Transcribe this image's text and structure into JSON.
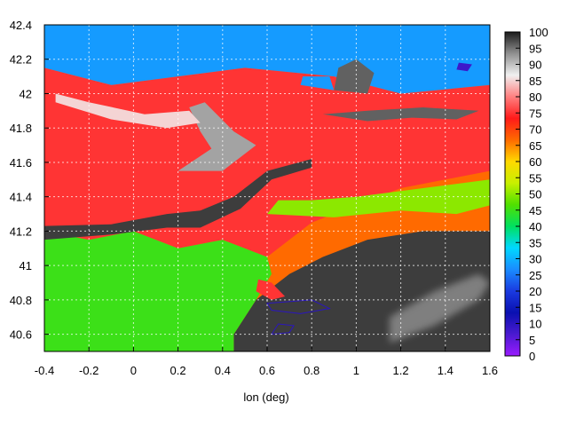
{
  "chart_data": {
    "type": "heatmap",
    "title": "",
    "xlabel": "lon (deg)",
    "ylabel": "",
    "xlim": [
      -0.4,
      1.6
    ],
    "ylim": [
      40.5,
      42.4
    ],
    "x_ticks": [
      "-0.4",
      "-0.2",
      "0",
      "0.2",
      "0.4",
      "0.6",
      "0.8",
      "1",
      "1.2",
      "1.4",
      "1.6"
    ],
    "y_ticks": [
      "40.6",
      "40.8",
      "41",
      "41.2",
      "41.4",
      "41.6",
      "41.8",
      "42",
      "42.2",
      "42.4"
    ],
    "colorbar": {
      "range": [
        0,
        100
      ],
      "ticks": [
        "0",
        "5",
        "10",
        "15",
        "20",
        "25",
        "30",
        "35",
        "40",
        "45",
        "50",
        "55",
        "60",
        "65",
        "70",
        "75",
        "80",
        "85",
        "90",
        "95",
        "100"
      ],
      "colors": [
        "#9a1bff",
        "#4a1ad0",
        "#0a10b0",
        "#1a3ae0",
        "#1a8cff",
        "#00d8ff",
        "#00e060",
        "#50e000",
        "#c8f000",
        "#ffd800",
        "#ff6a00",
        "#ff1a1a",
        "#ff8080",
        "#f0f0f0",
        "#909090",
        "#1a1a1a"
      ]
    },
    "grid": true,
    "regions": [
      {
        "cat": "ocean",
        "value": 98,
        "points": [
          [
            0.45,
            40.5
          ],
          [
            1.6,
            40.5
          ],
          [
            1.6,
            41.2
          ],
          [
            1.3,
            41.2
          ],
          [
            1.05,
            41.15
          ],
          [
            0.85,
            41.05
          ],
          [
            0.7,
            40.95
          ],
          [
            0.55,
            40.8
          ],
          [
            0.45,
            40.6
          ]
        ]
      },
      {
        "cat": "land_low",
        "value": 45,
        "points": [
          [
            -0.4,
            40.5
          ],
          [
            0.45,
            40.5
          ],
          [
            0.45,
            40.6
          ],
          [
            0.55,
            40.8
          ],
          [
            0.62,
            40.95
          ],
          [
            0.6,
            41.05
          ],
          [
            0.5,
            41.1
          ],
          [
            0.4,
            41.15
          ],
          [
            0.2,
            41.1
          ],
          [
            0,
            41.2
          ],
          [
            -0.2,
            41.15
          ],
          [
            -0.4,
            41.2
          ]
        ]
      },
      {
        "cat": "land_mid",
        "value": 75,
        "points": [
          [
            -0.4,
            41.2
          ],
          [
            -0.2,
            41.15
          ],
          [
            0,
            41.2
          ],
          [
            0.2,
            41.1
          ],
          [
            0.4,
            41.15
          ],
          [
            0.5,
            41.1
          ],
          [
            0.6,
            41.05
          ],
          [
            0.7,
            41.15
          ],
          [
            0.8,
            41.25
          ],
          [
            1.0,
            41.35
          ],
          [
            1.2,
            41.45
          ],
          [
            1.6,
            41.55
          ],
          [
            1.6,
            42.05
          ],
          [
            1.2,
            42.0
          ],
          [
            0.9,
            42.1
          ],
          [
            0.5,
            42.15
          ],
          [
            0.2,
            42.1
          ],
          [
            -0.1,
            42.05
          ],
          [
            -0.4,
            42.15
          ]
        ]
      },
      {
        "cat": "land_high",
        "value": 28,
        "points": [
          [
            -0.4,
            42.15
          ],
          [
            -0.1,
            42.05
          ],
          [
            0.2,
            42.1
          ],
          [
            0.5,
            42.15
          ],
          [
            0.9,
            42.1
          ],
          [
            1.2,
            42.0
          ],
          [
            1.6,
            42.05
          ],
          [
            1.6,
            42.4
          ],
          [
            -0.4,
            42.4
          ]
        ]
      },
      {
        "cat": "cloud_band",
        "value": 98,
        "points": [
          [
            -0.4,
            41.23
          ],
          [
            -0.1,
            41.24
          ],
          [
            0.15,
            41.3
          ],
          [
            0.3,
            41.32
          ],
          [
            0.45,
            41.4
          ],
          [
            0.6,
            41.55
          ],
          [
            0.8,
            41.62
          ],
          [
            0.8,
            41.57
          ],
          [
            0.62,
            41.5
          ],
          [
            0.48,
            41.33
          ],
          [
            0.3,
            41.22
          ],
          [
            0.15,
            41.22
          ],
          [
            -0.1,
            41.18
          ],
          [
            -0.4,
            41.15
          ]
        ]
      },
      {
        "cat": "cloud_band2",
        "value": 92,
        "points": [
          [
            0.2,
            41.55
          ],
          [
            0.35,
            41.68
          ],
          [
            0.3,
            41.78
          ],
          [
            0.25,
            41.92
          ],
          [
            0.32,
            41.95
          ],
          [
            0.45,
            41.78
          ],
          [
            0.55,
            41.7
          ],
          [
            0.4,
            41.55
          ]
        ]
      },
      {
        "cat": "light_band",
        "value": 85,
        "points": [
          [
            -0.35,
            41.95
          ],
          [
            -0.1,
            41.85
          ],
          [
            0.15,
            41.8
          ],
          [
            0.3,
            41.83
          ],
          [
            0.25,
            41.9
          ],
          [
            0.05,
            41.88
          ],
          [
            -0.2,
            41.95
          ],
          [
            -0.35,
            42.0
          ]
        ]
      },
      {
        "cat": "mid_band",
        "value": 50,
        "points": [
          [
            0.6,
            41.3
          ],
          [
            0.9,
            41.28
          ],
          [
            1.2,
            41.32
          ],
          [
            1.45,
            41.3
          ],
          [
            1.6,
            41.35
          ],
          [
            1.6,
            41.5
          ],
          [
            1.3,
            41.45
          ],
          [
            1.0,
            41.4
          ],
          [
            0.8,
            41.38
          ],
          [
            0.65,
            41.38
          ]
        ]
      },
      {
        "cat": "cloud_n",
        "value": 96,
        "points": [
          [
            0.85,
            41.88
          ],
          [
            1.05,
            41.84
          ],
          [
            1.25,
            41.86
          ],
          [
            1.45,
            41.85
          ],
          [
            1.55,
            41.9
          ],
          [
            1.3,
            41.92
          ],
          [
            1.05,
            41.9
          ]
        ]
      },
      {
        "cat": "cloud_n2",
        "value": 96,
        "points": [
          [
            0.9,
            42.02
          ],
          [
            1.05,
            42.0
          ],
          [
            1.08,
            42.12
          ],
          [
            1.0,
            42.2
          ],
          [
            0.92,
            42.15
          ]
        ]
      },
      {
        "cat": "land_blue",
        "value": 28,
        "points": [
          [
            0.75,
            42.05
          ],
          [
            0.9,
            42.02
          ],
          [
            0.88,
            42.1
          ],
          [
            0.76,
            42.1
          ]
        ]
      },
      {
        "cat": "land_mid_s",
        "value": 75,
        "points": [
          [
            0.55,
            40.85
          ],
          [
            0.62,
            40.8
          ],
          [
            0.68,
            40.82
          ],
          [
            0.62,
            40.9
          ],
          [
            0.56,
            40.92
          ]
        ]
      },
      {
        "cat": "purple_spot",
        "value": 8,
        "points": [
          [
            1.45,
            42.14
          ],
          [
            1.5,
            42.13
          ],
          [
            1.52,
            42.17
          ],
          [
            1.46,
            42.18
          ]
        ]
      },
      {
        "cat": "ocean_glint",
        "value": 90,
        "points": [
          [
            1.15,
            40.55
          ],
          [
            1.35,
            40.65
          ],
          [
            1.55,
            40.8
          ],
          [
            1.6,
            40.9
          ],
          [
            1.55,
            40.95
          ],
          [
            1.35,
            40.85
          ],
          [
            1.15,
            40.7
          ]
        ]
      },
      {
        "cat": "purple_outline",
        "value": 10,
        "points": [
          [
            0.6,
            40.78
          ],
          [
            0.8,
            40.8
          ],
          [
            0.88,
            40.75
          ],
          [
            0.75,
            40.72
          ],
          [
            0.62,
            40.74
          ]
        ]
      },
      {
        "cat": "purple_outline2",
        "value": 10,
        "points": [
          [
            0.62,
            40.6
          ],
          [
            0.7,
            40.61
          ],
          [
            0.72,
            40.65
          ],
          [
            0.65,
            40.66
          ]
        ]
      }
    ]
  }
}
